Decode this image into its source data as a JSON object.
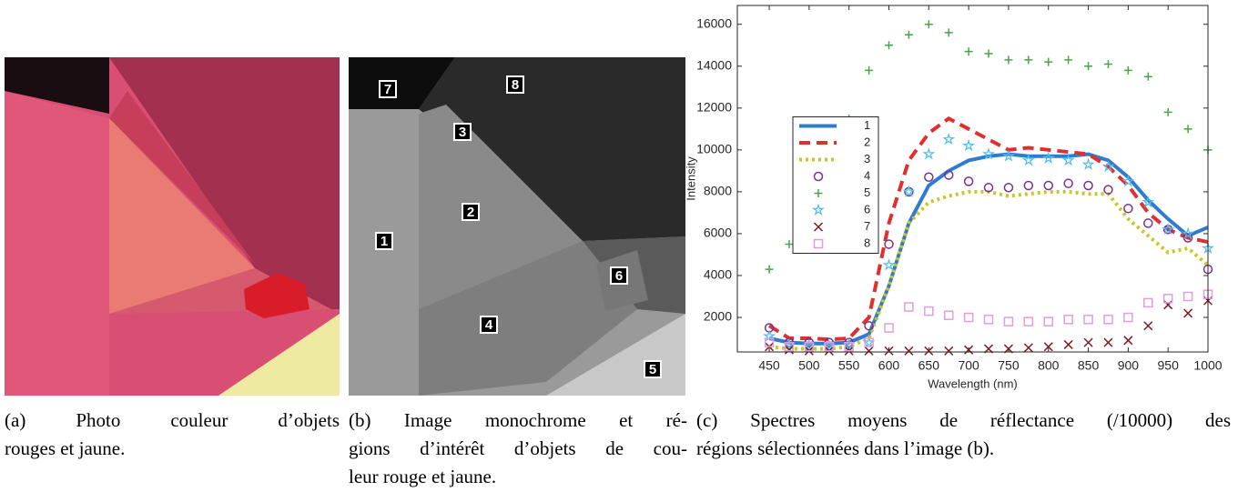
{
  "captions": [
    {
      "lines": [
        "(a) Photo couleur d’objets",
        "rouges et jaune."
      ]
    },
    {
      "lines": [
        "(b) Image monochrome et ré-",
        "gions d’intérêt d’objets de cou-",
        "leur rouge et jaune."
      ]
    },
    {
      "lines": [
        "(c) Spectres moyens de réflectance (/10000) des",
        "régions sélectionnées dans l’image (b)."
      ]
    }
  ],
  "image_b": {
    "regions": [
      "7",
      "8",
      "3",
      "2",
      "1",
      "6",
      "4",
      "5"
    ]
  },
  "chart_data": {
    "type": "line",
    "xlabel": "Wavelength (nm)",
    "ylabel": "Intensity",
    "x": [
      450,
      475,
      500,
      525,
      550,
      575,
      600,
      625,
      650,
      675,
      700,
      725,
      750,
      775,
      800,
      825,
      850,
      875,
      900,
      925,
      950,
      975,
      1000
    ],
    "xlim": [
      410,
      1000
    ],
    "xticks": [
      450,
      500,
      550,
      600,
      650,
      700,
      750,
      800,
      850,
      900,
      950,
      1000
    ],
    "ylim": [
      350,
      16900
    ],
    "yticks": [
      2000,
      4000,
      6000,
      8000,
      10000,
      12000,
      14000,
      16000
    ],
    "legend": "center left",
    "series": [
      {
        "name": "1",
        "color": "#2f7bd0",
        "linestyle": "solid",
        "values": [
          1000,
          800,
          750,
          750,
          800,
          1200,
          3500,
          6500,
          8300,
          9000,
          9500,
          9700,
          9800,
          9700,
          9700,
          9700,
          9800,
          9500,
          8700,
          7600,
          6700,
          5900,
          6300
        ]
      },
      {
        "name": "2",
        "color": "#e0302e",
        "linestyle": "dashed",
        "values": [
          1600,
          1000,
          1000,
          950,
          1000,
          2000,
          6500,
          9500,
          10800,
          11500,
          11000,
          10500,
          10000,
          10100,
          10000,
          9900,
          9800,
          9200,
          8300,
          7000,
          6200,
          5800,
          5600
        ]
      },
      {
        "name": "3",
        "color": "#c9c62a",
        "linestyle": "dotted",
        "values": [
          600,
          500,
          500,
          500,
          600,
          1000,
          3500,
          6500,
          7500,
          7800,
          8000,
          8000,
          7800,
          7900,
          8000,
          8000,
          7900,
          7900,
          6700,
          5900,
          5100,
          5300,
          4500
        ]
      },
      {
        "name": "4",
        "color": "#7e2f8e",
        "marker": "circle",
        "values": [
          1500,
          800,
          800,
          800,
          800,
          1600,
          5500,
          8000,
          8700,
          8800,
          8500,
          8200,
          8200,
          8300,
          8300,
          8400,
          8300,
          8100,
          7200,
          6500,
          6200,
          5800,
          4300
        ]
      },
      {
        "name": "5",
        "color": "#4aa548",
        "marker": "plus",
        "values": [
          4300,
          5500,
          7000,
          9000,
          11500,
          13800,
          15000,
          15500,
          16000,
          15600,
          14700,
          14600,
          14300,
          14300,
          14200,
          14300,
          14000,
          14100,
          13800,
          13500,
          11800,
          11000,
          10000
        ]
      },
      {
        "name": "6",
        "color": "#4dbeee",
        "marker": "star",
        "values": [
          1100,
          700,
          650,
          650,
          700,
          800,
          4500,
          8000,
          9800,
          10500,
          10200,
          9800,
          9700,
          9500,
          9600,
          9500,
          9300,
          9200,
          8500,
          7500,
          6200,
          6000,
          5300
        ]
      },
      {
        "name": "7",
        "color": "#7a1c22",
        "marker": "x",
        "values": [
          600,
          450,
          400,
          400,
          400,
          400,
          400,
          400,
          400,
          400,
          450,
          500,
          500,
          550,
          600,
          700,
          800,
          800,
          900,
          1600,
          2600,
          2200,
          2800
        ]
      },
      {
        "name": "8",
        "color": "#e49ce0",
        "marker": "square",
        "values": [
          800,
          600,
          600,
          600,
          600,
          800,
          1500,
          2500,
          2300,
          2100,
          2000,
          1900,
          1800,
          1800,
          1800,
          1900,
          1900,
          1900,
          2000,
          2700,
          2900,
          3000,
          3100
        ]
      }
    ]
  }
}
